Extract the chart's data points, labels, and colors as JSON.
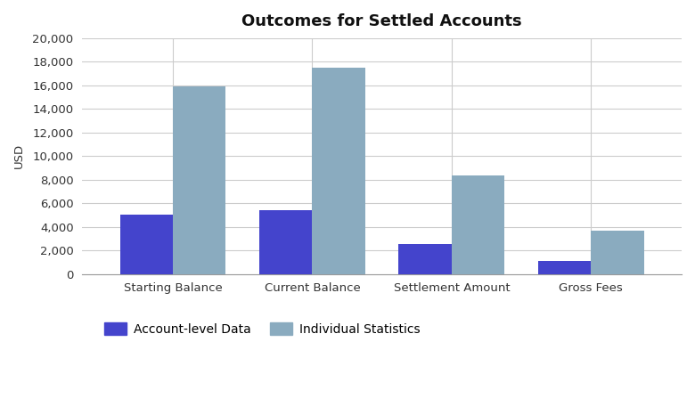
{
  "title": "Outcomes for Settled Accounts",
  "categories": [
    "Starting Balance",
    "Current Balance",
    "Settlement Amount",
    "Gross Fees"
  ],
  "series": [
    {
      "name": "Account-level Data",
      "values": [
        5000,
        5400,
        2550,
        1100
      ],
      "color": "#4444cc"
    },
    {
      "name": "Individual Statistics",
      "values": [
        15900,
        17500,
        8350,
        3700
      ],
      "color": "#8aabbf"
    }
  ],
  "ylabel": "USD",
  "ylim": [
    0,
    20000
  ],
  "yticks": [
    0,
    2000,
    4000,
    6000,
    8000,
    10000,
    12000,
    14000,
    16000,
    18000,
    20000
  ],
  "background_color": "#ffffff",
  "plot_bg_color": "#ffffff",
  "grid_color": "#cccccc",
  "bar_width": 0.38,
  "title_fontsize": 13,
  "legend_fontsize": 10,
  "axis_fontsize": 9.5,
  "figsize": [
    7.8,
    4.57
  ],
  "dpi": 100
}
